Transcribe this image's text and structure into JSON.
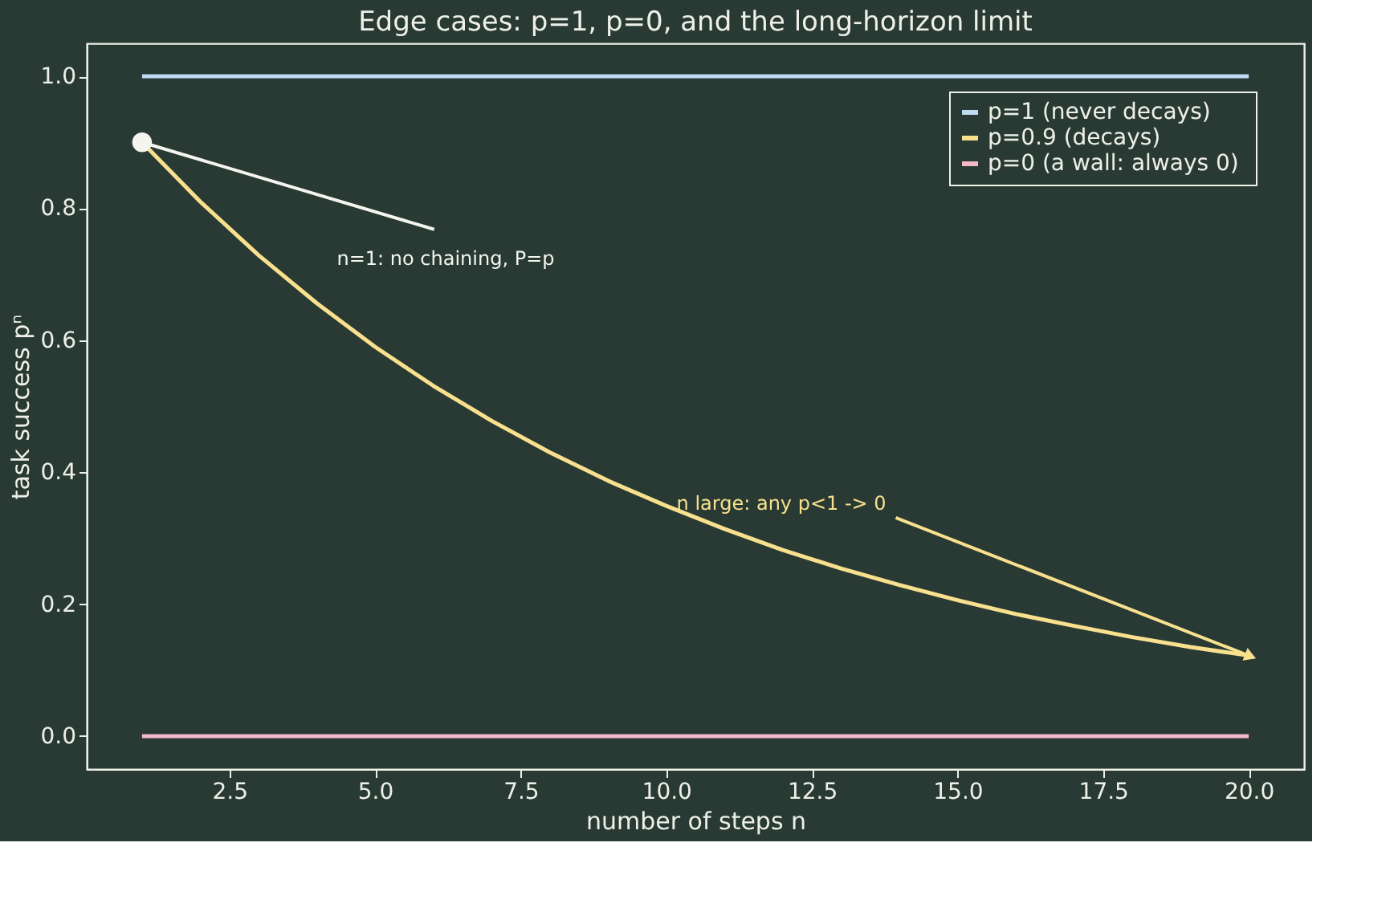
{
  "chart_data": {
    "type": "line",
    "title": "Edge cases: p=1, p=0, and the long-horizon limit",
    "xlabel": "number of steps  n",
    "ylabel": "task success  pⁿ",
    "x": [
      1,
      2,
      3,
      4,
      5,
      6,
      7,
      8,
      9,
      10,
      11,
      12,
      13,
      14,
      15,
      16,
      17,
      18,
      19,
      20
    ],
    "series": [
      {
        "name": "p=1  (never decays)",
        "color": "#bfdcf5",
        "values": [
          1,
          1,
          1,
          1,
          1,
          1,
          1,
          1,
          1,
          1,
          1,
          1,
          1,
          1,
          1,
          1,
          1,
          1,
          1,
          1
        ]
      },
      {
        "name": "p=0.9  (decays)",
        "color": "#f8e08e",
        "values": [
          0.9,
          0.81,
          0.729,
          0.656,
          0.59,
          0.531,
          0.478,
          0.43,
          0.387,
          0.349,
          0.314,
          0.282,
          0.254,
          0.229,
          0.206,
          0.185,
          0.167,
          0.15,
          0.135,
          0.122
        ]
      },
      {
        "name": "p=0  (a wall: always 0)",
        "color": "#f5b8c8",
        "values": [
          0,
          0,
          0,
          0,
          0,
          0,
          0,
          0,
          0,
          0,
          0,
          0,
          0,
          0,
          0,
          0,
          0,
          0,
          0,
          0
        ]
      },
      {
        "type": "scatter",
        "color": "#f5f5ef",
        "marker": "circle",
        "x": [
          1
        ],
        "values": [
          0.9
        ]
      }
    ],
    "annotations": [
      {
        "text": "n=1: no chaining, P=p",
        "x": 1,
        "y": 0.9
      },
      {
        "text": "n large: any p<1 -> 0",
        "x": 20,
        "y": 0.122
      }
    ],
    "xlim": [
      0.05,
      20.95
    ],
    "ylim": [
      -0.05,
      1.05
    ],
    "xticks": [
      {
        "value": 2.5,
        "label": "2.5"
      },
      {
        "value": 5,
        "label": "5.0"
      },
      {
        "value": 7.5,
        "label": "7.5"
      },
      {
        "value": 10,
        "label": "10.0"
      },
      {
        "value": 12.5,
        "label": "12.5"
      },
      {
        "value": 15,
        "label": "15.0"
      },
      {
        "value": 17.5,
        "label": "17.5"
      },
      {
        "value": 20,
        "label": "20.0"
      }
    ],
    "yticks": [
      {
        "value": 0,
        "label": "0.0"
      },
      {
        "value": 0.2,
        "label": "0.2"
      },
      {
        "value": 0.4,
        "label": "0.4"
      },
      {
        "value": 0.6,
        "label": "0.6"
      },
      {
        "value": 0.8,
        "label": "0.8"
      },
      {
        "value": 1,
        "label": "1.0"
      }
    ],
    "grid": false,
    "legend": "top right",
    "marker": "none",
    "line_style": "solid"
  }
}
